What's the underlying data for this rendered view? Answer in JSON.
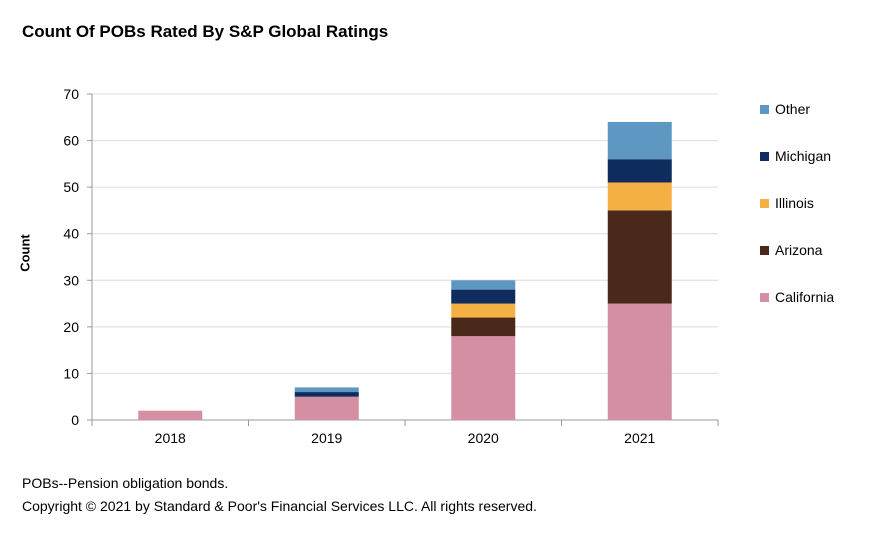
{
  "chart_data": {
    "type": "bar",
    "stacked": true,
    "title": "Count Of POBs Rated By S&P Global Ratings",
    "xlabel": "",
    "ylabel": "Count",
    "ylim": [
      0,
      70
    ],
    "yticks": [
      0,
      10,
      20,
      30,
      40,
      50,
      60,
      70
    ],
    "grid": true,
    "legend_position": "right",
    "categories": [
      "2018",
      "2019",
      "2020",
      "2021"
    ],
    "series": [
      {
        "name": "California",
        "color": "#D48FA3",
        "values": [
          2,
          5,
          18,
          25
        ]
      },
      {
        "name": "Arizona",
        "color": "#4B291A",
        "values": [
          0,
          0,
          4,
          20
        ]
      },
      {
        "name": "Illinois",
        "color": "#F4B043",
        "values": [
          0,
          0,
          3,
          6
        ]
      },
      {
        "name": "Michigan",
        "color": "#0E2D5E",
        "values": [
          0,
          1,
          3,
          5
        ]
      },
      {
        "name": "Other",
        "color": "#5E97C2",
        "values": [
          0,
          1,
          2,
          8
        ]
      }
    ]
  },
  "footnotes": {
    "definition": "POBs--Pension obligation bonds.",
    "copyright": "Copyright © 2021 by Standard & Poor's Financial Services LLC. All rights reserved."
  }
}
